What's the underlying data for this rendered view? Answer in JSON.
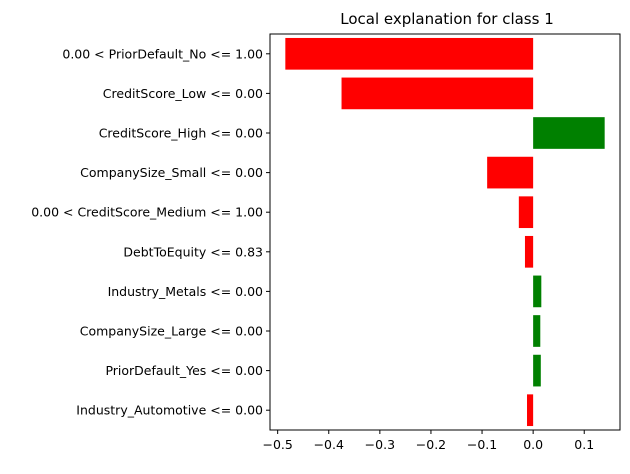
{
  "chart_data": {
    "type": "bar",
    "orientation": "horizontal",
    "title": "Local explanation for class 1",
    "xlabel": "",
    "ylabel": "",
    "categories": [
      "0.00 < PriorDefault_No <= 1.00",
      "CreditScore_Low <= 0.00",
      "CreditScore_High <= 0.00",
      "CompanySize_Small <= 0.00",
      "0.00 < CreditScore_Medium <= 1.00",
      "DebtToEquity <= 0.83",
      "Industry_Metals <= 0.00",
      "CompanySize_Large <= 0.00",
      "PriorDefault_Yes <= 0.00",
      "Industry_Automotive <= 0.00"
    ],
    "values": [
      -0.485,
      -0.375,
      0.14,
      -0.09,
      -0.028,
      -0.016,
      0.016,
      0.014,
      0.015,
      -0.012
    ],
    "xlim": [
      -0.515,
      0.17
    ],
    "xticks": [
      -0.5,
      -0.4,
      -0.3,
      -0.2,
      -0.1,
      0.0,
      0.1
    ],
    "xtick_labels": [
      "−0.5",
      "−0.4",
      "−0.3",
      "−0.2",
      "−0.1",
      "0.0",
      "0.1"
    ],
    "grid": false,
    "colors": {
      "positive": "#008000",
      "negative": "#ff0000"
    }
  }
}
